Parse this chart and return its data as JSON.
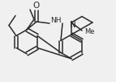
{
  "bg": "#f0f0f0",
  "lc": "#2a2a2a",
  "lw": 1.1,
  "fs": 6.5,
  "xlim": [
    0,
    143
  ],
  "ylim": [
    0,
    102
  ]
}
